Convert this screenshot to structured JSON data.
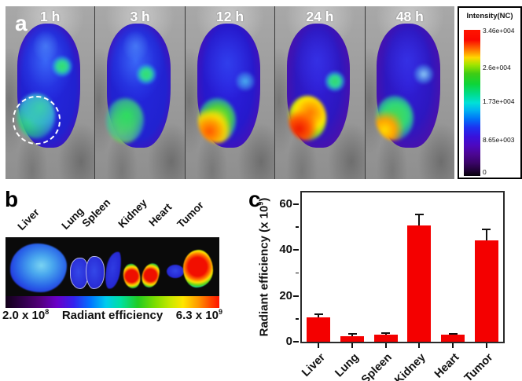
{
  "panel_a": {
    "label": "a",
    "timepoints": [
      "1 h",
      "3 h",
      "12 h",
      "24 h",
      "48 h"
    ],
    "colorbar": {
      "title": "Intensity(NC)",
      "ticks": [
        "3.46e+004",
        "2.6e+004",
        "1.73e+004",
        "8.65e+003",
        "0"
      ]
    }
  },
  "panel_b": {
    "label": "b",
    "organs": [
      "Liver",
      "Lung",
      "Spleen",
      "Kidney",
      "Heart",
      "Tumor"
    ],
    "scale": {
      "min_base": "2.0 x 10",
      "min_exp": "8",
      "label": "Radiant efficiency",
      "max_base": "6.3 x 10",
      "max_exp": "9"
    }
  },
  "panel_c": {
    "label": "c",
    "ylabel_base": "Radiant efficiency (x 10",
    "ylabel_exp": "9",
    "ylabel_suffix": ")"
  },
  "chart_data": {
    "type": "bar",
    "categories": [
      "Liver",
      "Lung",
      "Spleen",
      "Kidney",
      "Heart",
      "Tumor"
    ],
    "values": [
      10.5,
      2.5,
      3,
      50.5,
      3,
      44
    ],
    "errors": [
      1.5,
      0.8,
      0.7,
      5,
      0.4,
      5
    ],
    "title": "",
    "xlabel": "",
    "ylabel": "Radiant efficiency (x 10^9)",
    "ylim": [
      0,
      65
    ],
    "yticks": [
      0,
      20,
      40,
      60
    ],
    "yticks_minor": [
      10,
      30,
      50
    ],
    "bar_color": "#f40000",
    "error_color": "#111111",
    "grid": false,
    "legend": false
  }
}
